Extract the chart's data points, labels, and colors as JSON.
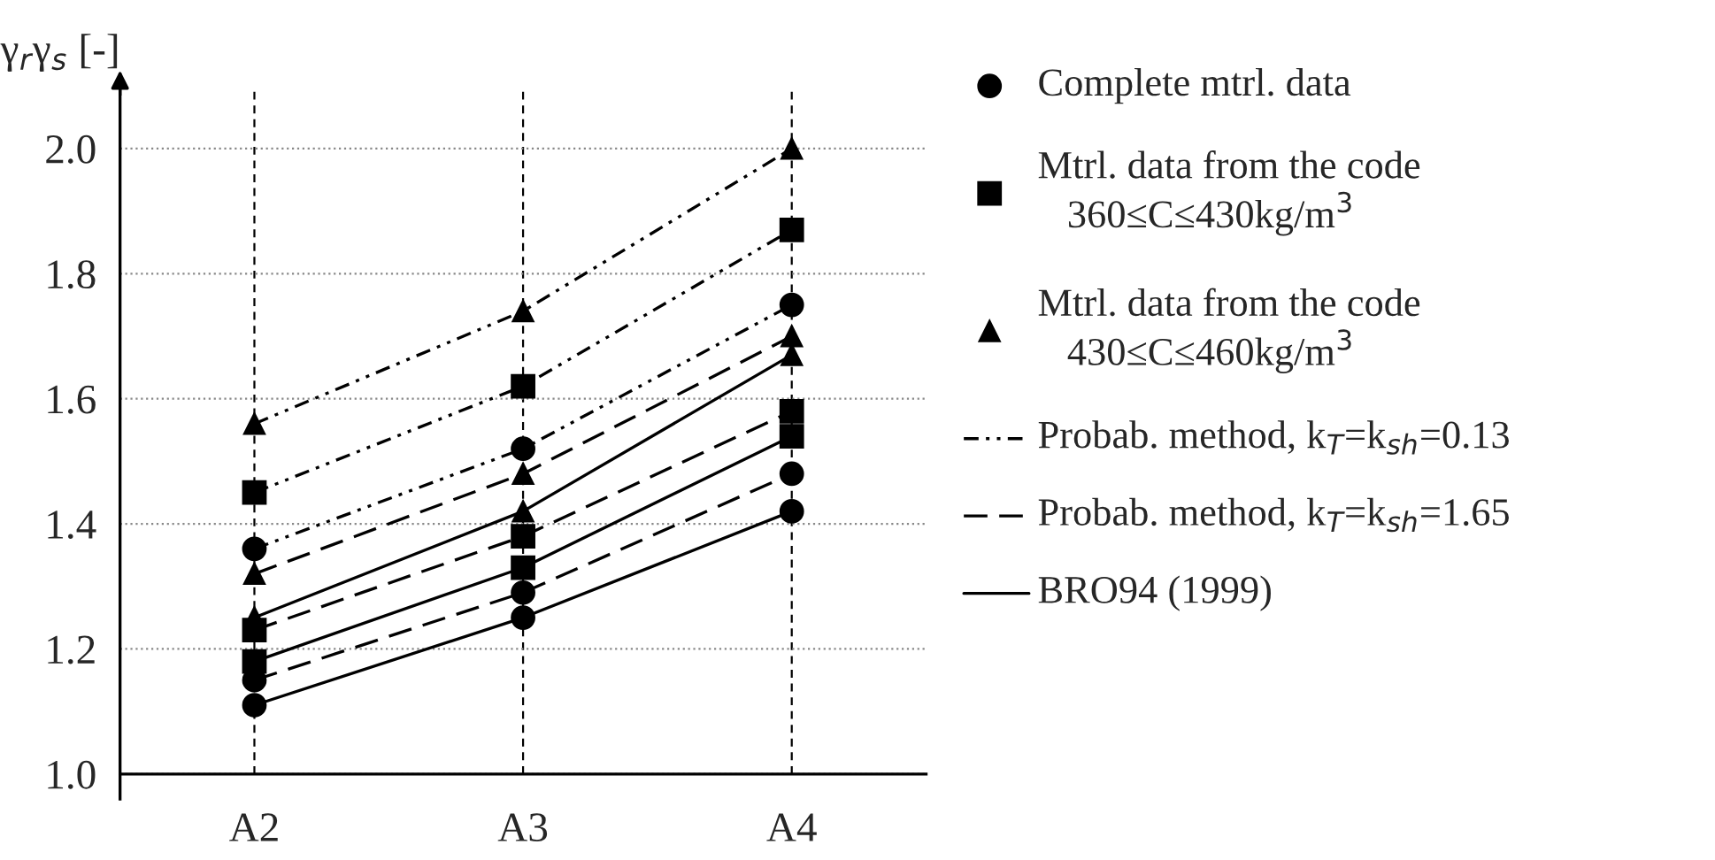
{
  "chart_data": {
    "type": "line",
    "ylabel": "γ$_{r}$γ$_{s}$ [-]",
    "categories": [
      "A2",
      "A3",
      "A4"
    ],
    "series": [
      {
        "color": "#000000",
        "marker": "circle",
        "line_style": "dashdot",
        "values": [
          1.36,
          1.52,
          1.75
        ]
      },
      {
        "color": "#000000",
        "marker": "square",
        "line_style": "dashdot",
        "values": [
          1.45,
          1.62,
          1.87
        ]
      },
      {
        "color": "#000000",
        "marker": "triangle",
        "line_style": "dashdot",
        "values": [
          1.56,
          1.74,
          2.0
        ]
      },
      {
        "color": "#000000",
        "marker": "circle",
        "line_style": "dashed",
        "values": [
          1.15,
          1.29,
          1.48
        ]
      },
      {
        "color": "#000000",
        "marker": "square",
        "line_style": "dashed",
        "values": [
          1.23,
          1.38,
          1.58
        ]
      },
      {
        "color": "#000000",
        "marker": "triangle",
        "line_style": "dashed",
        "values": [
          1.32,
          1.48,
          1.7
        ]
      },
      {
        "color": "#000000",
        "marker": "circle",
        "line_style": "solid",
        "values": [
          1.11,
          1.25,
          1.42
        ]
      },
      {
        "color": "#000000",
        "marker": "square",
        "line_style": "solid",
        "values": [
          1.18,
          1.33,
          1.54
        ]
      },
      {
        "color": "#000000",
        "marker": "triangle",
        "line_style": "solid",
        "values": [
          1.25,
          1.42,
          1.67
        ]
      }
    ],
    "annotations": [
      "Complete mtrl. data",
      "Mtrl. data from the code\n   360≤C≤430kg/m$^{3}$",
      "Mtrl. data from the code\n   430≤C≤460kg/m$^{3}$",
      "Probab. method, k$_{T}$=k$_{sh}$=0.13",
      "Probab. method, k$_{T}$=k$_{sh}$=1.65",
      "BRO94 (1999)"
    ],
    "ylim": [
      1.0,
      2.1
    ],
    "yticks": [
      {
        "value": 1.0,
        "label": "1.0"
      },
      1.2,
      1.4,
      1.6,
      1.8,
      {
        "value": 2.0,
        "label": "2.0"
      }
    ],
    "grid": true
  }
}
